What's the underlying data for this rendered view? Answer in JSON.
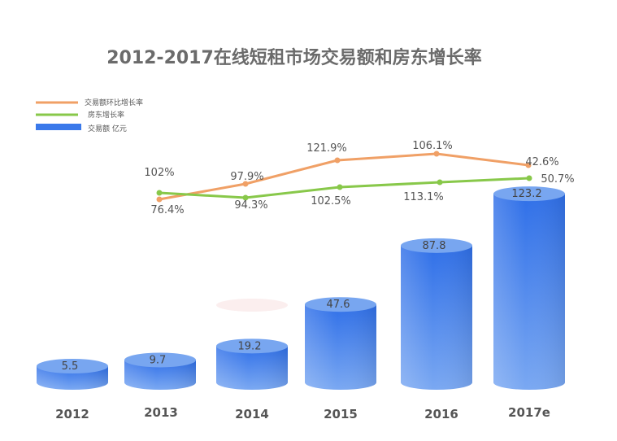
{
  "chart_data": {
    "type": "bar",
    "title": "2012-2017在线短租市场交易额和房东增长率",
    "categories": [
      "2012",
      "2013",
      "2014",
      "2015",
      "2016",
      "2017e"
    ],
    "series": [
      {
        "name": "交易额 亿元",
        "type": "bar",
        "values": [
          5.5,
          9.7,
          19.2,
          47.6,
          87.8,
          123.2
        ],
        "labels": [
          "5.5",
          "9.7",
          "19.2",
          "47.6",
          "87.8",
          "123.2"
        ]
      },
      {
        "name": "交易额环比增长率",
        "type": "line",
        "values": [
          null,
          76.4,
          97.9,
          121.9,
          106.1,
          42.6
        ],
        "labels": [
          "",
          "76.4%",
          "97.9%",
          "121.9%",
          "106.1%",
          "42.6%"
        ]
      },
      {
        "name": "房东增长率",
        "type": "line",
        "values": [
          null,
          102,
          94.3,
          102.5,
          113.1,
          50.7
        ],
        "labels": [
          "",
          "102%",
          "94.3%",
          "102.5%",
          "113.1%",
          "50.7%"
        ]
      }
    ],
    "legend": "top-left",
    "grid": false
  },
  "colors": {
    "bar_top": "#2f6fe8",
    "bar_bottom": "#7aa8f2",
    "bar_cap": "#78a6f0",
    "line_growth": "#f0a066",
    "line_host": "#88c84a"
  }
}
